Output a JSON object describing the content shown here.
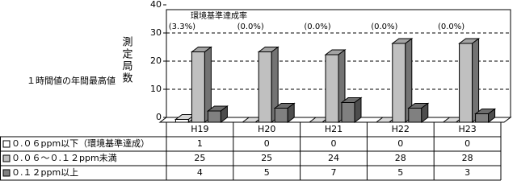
{
  "chart_data": {
    "type": "bar3d",
    "left_label": "１時間値の年間最高値",
    "y_label": "測定局数",
    "categories": [
      "H19",
      "H20",
      "H21",
      "H22",
      "H23"
    ],
    "series": [
      {
        "name": "０.０６ppm以下（環境基準達成）",
        "color": "#ffffff",
        "values": [
          1,
          0,
          0,
          0,
          0
        ]
      },
      {
        "name": "０.０６～０.１２ppm未満",
        "color": "#c0c0c0",
        "values": [
          25,
          25,
          24,
          28,
          28
        ]
      },
      {
        "name": "０.１２ppm以上",
        "color": "#808080",
        "values": [
          4,
          5,
          7,
          5,
          3
        ]
      }
    ],
    "annotation": {
      "label": "環境基準達成率",
      "values": [
        3.3,
        0.0,
        0.0,
        0.0,
        0.0
      ],
      "value_labels": [
        "(3.3%)",
        "(0.0%)",
        "(0.0%)",
        "(0.0%)",
        "(0.0%)"
      ]
    },
    "ylim": [
      0,
      40
    ],
    "yticks": [
      0,
      10,
      20,
      30,
      40
    ],
    "grid": true
  }
}
